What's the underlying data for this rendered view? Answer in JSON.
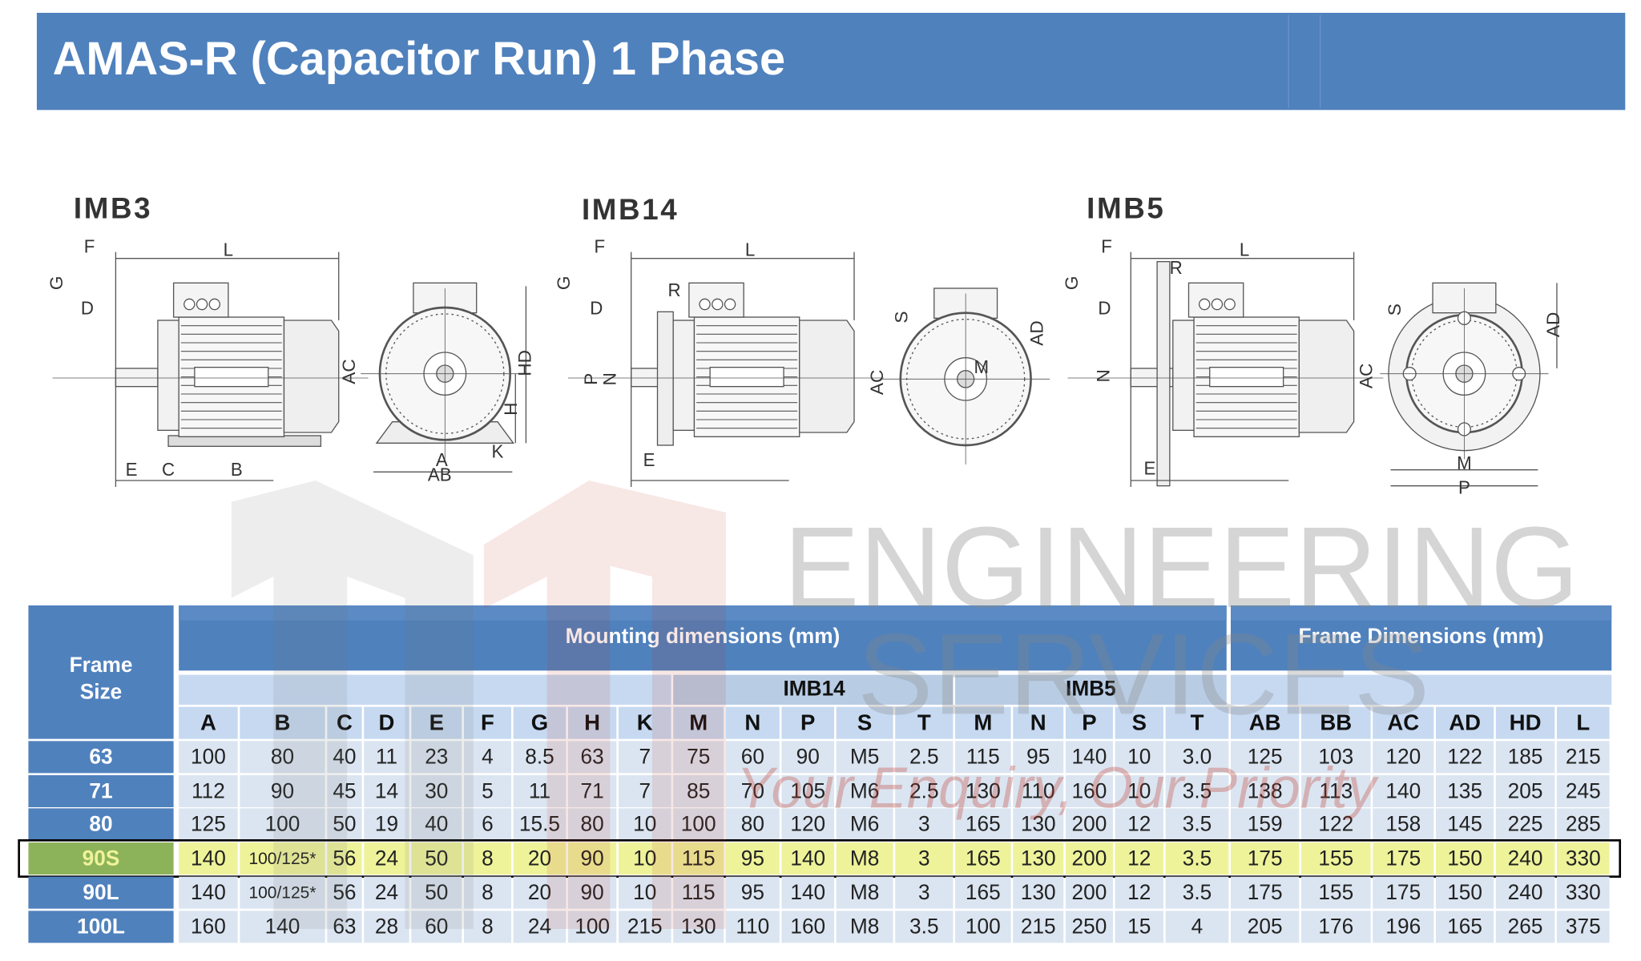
{
  "header": {
    "title": "AMAS-R (Capacitor Run) 1 Phase"
  },
  "diagrams": [
    {
      "name": "IMB3",
      "labels": [
        "F",
        "G",
        "D",
        "L",
        "AC",
        "HD",
        "H",
        "E",
        "C",
        "B",
        "A",
        "AB",
        "K"
      ]
    },
    {
      "name": "IMB14",
      "labels": [
        "F",
        "G",
        "D",
        "L",
        "R",
        "P",
        "N",
        "E",
        "AC",
        "S",
        "M",
        "AD"
      ]
    },
    {
      "name": "IMB5",
      "labels": [
        "F",
        "G",
        "D",
        "L",
        "R",
        "N",
        "E",
        "AC",
        "S",
        "AD",
        "M",
        "P"
      ]
    }
  ],
  "watermark": {
    "line1": "ENGINEERING",
    "line2": "SERVICES",
    "tagline": "Your Enquiry, Our Priority"
  },
  "table": {
    "frame_header": [
      "Frame",
      "Size"
    ],
    "group_mounting": "Mounting dimensions (mm)",
    "group_frame": "Frame Dimensions (mm)",
    "sub_imb14": "IMB14",
    "sub_imb5": "IMB5",
    "columns": [
      "A",
      "B",
      "C",
      "D",
      "E",
      "F",
      "G",
      "H",
      "K",
      "M",
      "N",
      "P",
      "S",
      "T",
      "M",
      "N",
      "P",
      "S",
      "T",
      "AB",
      "BB",
      "AC",
      "AD",
      "HD",
      "L"
    ],
    "rows": [
      {
        "frame": "63",
        "cells": [
          "100",
          "80",
          "40",
          "11",
          "23",
          "4",
          "8.5",
          "63",
          "7",
          "75",
          "60",
          "90",
          "M5",
          "2.5",
          "115",
          "95",
          "140",
          "10",
          "3.0",
          "125",
          "103",
          "120",
          "122",
          "185",
          "215"
        ]
      },
      {
        "frame": "71",
        "cells": [
          "112",
          "90",
          "45",
          "14",
          "30",
          "5",
          "11",
          "71",
          "7",
          "85",
          "70",
          "105",
          "M6",
          "2.5",
          "130",
          "110",
          "160",
          "10",
          "3.5",
          "138",
          "113",
          "140",
          "135",
          "205",
          "245"
        ]
      },
      {
        "frame": "80",
        "cells": [
          "125",
          "100",
          "50",
          "19",
          "40",
          "6",
          "15.5",
          "80",
          "10",
          "100",
          "80",
          "120",
          "M6",
          "3",
          "165",
          "130",
          "200",
          "12",
          "3.5",
          "159",
          "122",
          "158",
          "145",
          "225",
          "285"
        ]
      },
      {
        "frame": "90S",
        "cells": [
          "140",
          "100/125*",
          "56",
          "24",
          "50",
          "8",
          "20",
          "90",
          "10",
          "115",
          "95",
          "140",
          "M8",
          "3",
          "165",
          "130",
          "200",
          "12",
          "3.5",
          "175",
          "155",
          "175",
          "150",
          "240",
          "330"
        ]
      },
      {
        "frame": "90L",
        "cells": [
          "140",
          "100/125*",
          "56",
          "24",
          "50",
          "8",
          "20",
          "90",
          "10",
          "115",
          "95",
          "140",
          "M8",
          "3",
          "165",
          "130",
          "200",
          "12",
          "3.5",
          "175",
          "155",
          "175",
          "150",
          "240",
          "330"
        ]
      },
      {
        "frame": "100L",
        "cells": [
          "160",
          "140",
          "63",
          "28",
          "60",
          "8",
          "24",
          "100",
          "215",
          "130",
          "110",
          "160",
          "M8",
          "3.5",
          "100",
          "215",
          "250",
          "15",
          "4",
          "205",
          "176",
          "196",
          "165",
          "265",
          "375"
        ]
      }
    ],
    "highlight_row": 3
  }
}
